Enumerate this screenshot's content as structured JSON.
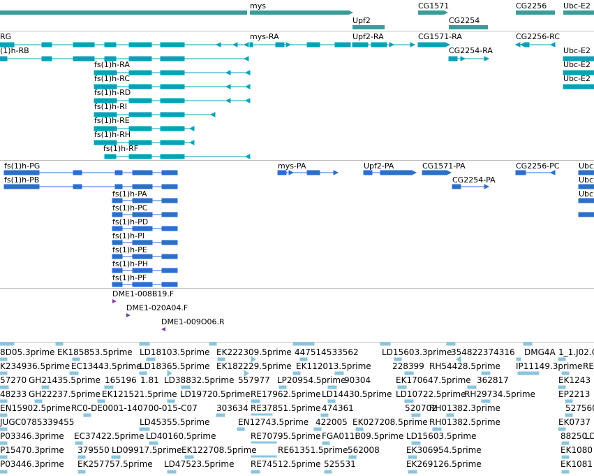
{
  "colors": {
    "gene": "#3a9c9a",
    "mrna": "#0aa1b8",
    "cds": "#2b6fcc",
    "clone": "#7a3fa0",
    "est": "#8cc4de",
    "separator": "#bfbfbf"
  },
  "gene_track": {
    "labels": [
      "mys",
      "Upf2",
      "CG1571",
      "CG2254",
      "CG2256",
      "Ubc-E2"
    ]
  },
  "mrna_track": {
    "labels": [
      "RG",
      "(1)h-RB",
      "fs(1)h-RA",
      "fs(1)h-RC",
      "fs(1)h-RD",
      "fs(1)h-RI",
      "fs(1)h-RE",
      "fs(1)h-RH",
      "fs(1)h-RF",
      "mys-RA",
      "Upf2-RA",
      "CG1571-RA",
      "CG2254-RA",
      "CG2256-RC",
      "Ubc-E2",
      "Ubc-E2",
      "Ubc-E2"
    ]
  },
  "cds_track": {
    "labels": [
      "fs(1)h-PG",
      "fs(1)h-PB",
      "fs(1)h-PA",
      "fs(1)h-PC",
      "fs(1)h-PD",
      "fs(1)h-PI",
      "fs(1)h-PE",
      "fs(1)h-PH",
      "fs(1)h-PF",
      "mys-PA",
      "Upf2-PA",
      "CG1571-PA",
      "CG2254-PA",
      "CG2256-PC",
      "Ubc",
      "Ubc",
      "Ubc"
    ]
  },
  "clone_track": {
    "labels": [
      "DME1-008B19.F",
      "DME1-020A04.F",
      "DME1-009O06.R"
    ]
  },
  "est_track": {
    "labels": [
      "8D05.3prime",
      "EK185853.5prime",
      "LD18103.5prime",
      "EK222309.5prime",
      "447514533562",
      "LD15603.3prime",
      "354822374316",
      "DMG4A",
      "1_1.J02.C",
      "K234936.5prime",
      "EC13443.5prime",
      "LD18365.5prime",
      "EK182229.5prime",
      "EK112013.5prime",
      "228399",
      "RH54428.5prime",
      "IP11149.3prime",
      "RE",
      "57270",
      "GH21435.5prime",
      "165196",
      "1.81",
      "LD38832.5prime",
      "557977",
      "LP20954.5prime",
      "90304",
      "EK170647.5prime",
      "362817",
      "EK1243",
      "48233",
      "GH22237.5prime",
      "EK121521.5prime",
      "LD19720.5prime",
      "RE17962.5prime",
      "LD14430.5prime",
      "LD10722.5prime",
      "RH29734.5prime",
      "EP2213",
      "EN15902.5prime",
      "RC0-DE0001-140700-015-C07",
      "303634",
      "RE37851.5prime",
      "474361",
      "520702",
      "RH01382.3prime",
      "527560",
      "JUGC0785339455",
      "LD45355.5prime",
      "EN12743.5prime",
      "422005",
      "EK027208.5prime",
      "RH01382.5prime",
      "EK0737",
      "P03346.3prime",
      "EC37422.5prime",
      "LD40160.5prime",
      "RE70795.5prime",
      "FGA011B09.5prime",
      "LD15603.5prime",
      "88250",
      "LD",
      "P15470.3prime",
      "379550",
      "LD09917.5prime",
      "EK122708.5prime",
      "RE61351.5prime",
      "562008",
      "EK306954.5prime",
      "EK1080",
      "P03446.3prime",
      "EK257757.5prime",
      "LD47523.5prime",
      "RE74512.5prime",
      "525531",
      "EK269126.5prime",
      "EK1081"
    ]
  }
}
